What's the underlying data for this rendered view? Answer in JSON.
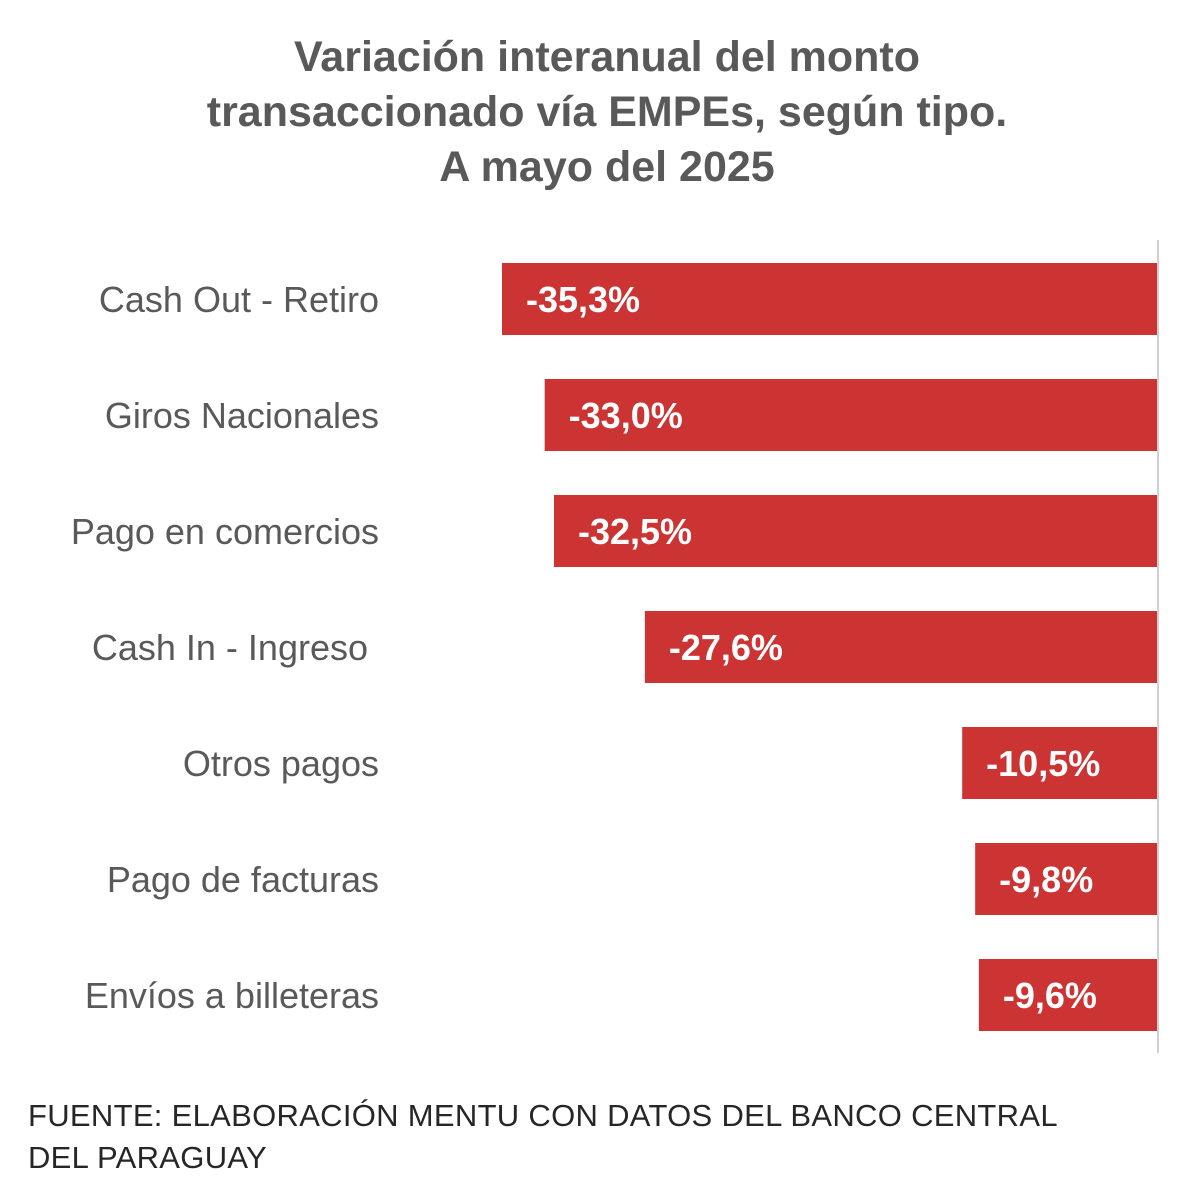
{
  "chart_data": {
    "type": "bar",
    "orientation": "horizontal",
    "title_lines": [
      "Variación interanual del monto",
      "transaccionado vía EMPEs, según tipo.",
      "A mayo del 2025"
    ],
    "categories": [
      "Cash Out - Retiro",
      "Giros Nacionales",
      "Pago en comercios",
      "Cash In - Ingreso",
      "Otros pagos",
      "Pago de facturas",
      "Envíos a billeteras"
    ],
    "values": [
      -35.3,
      -33.0,
      -32.5,
      -27.6,
      -10.5,
      -9.8,
      -9.6
    ],
    "data_labels": [
      "-35,3%",
      "-33,0%",
      "-32,5%",
      "-27,6%",
      "-10,5%",
      "-9,8%",
      "-9,6%"
    ],
    "xlim": [
      -35.3,
      0
    ],
    "unit": "%",
    "grid": false,
    "legend": "none",
    "bar_color": "#cc3333",
    "label_color": "#ffffff",
    "category_color": "#595959",
    "axis_color": "#d0d0d0"
  },
  "footer": {
    "lines": [
      "FUENTE: ELABORACIÓN MENTU CON DATOS DEL BANCO CENTRAL",
      "DEL PARAGUAY"
    ]
  }
}
